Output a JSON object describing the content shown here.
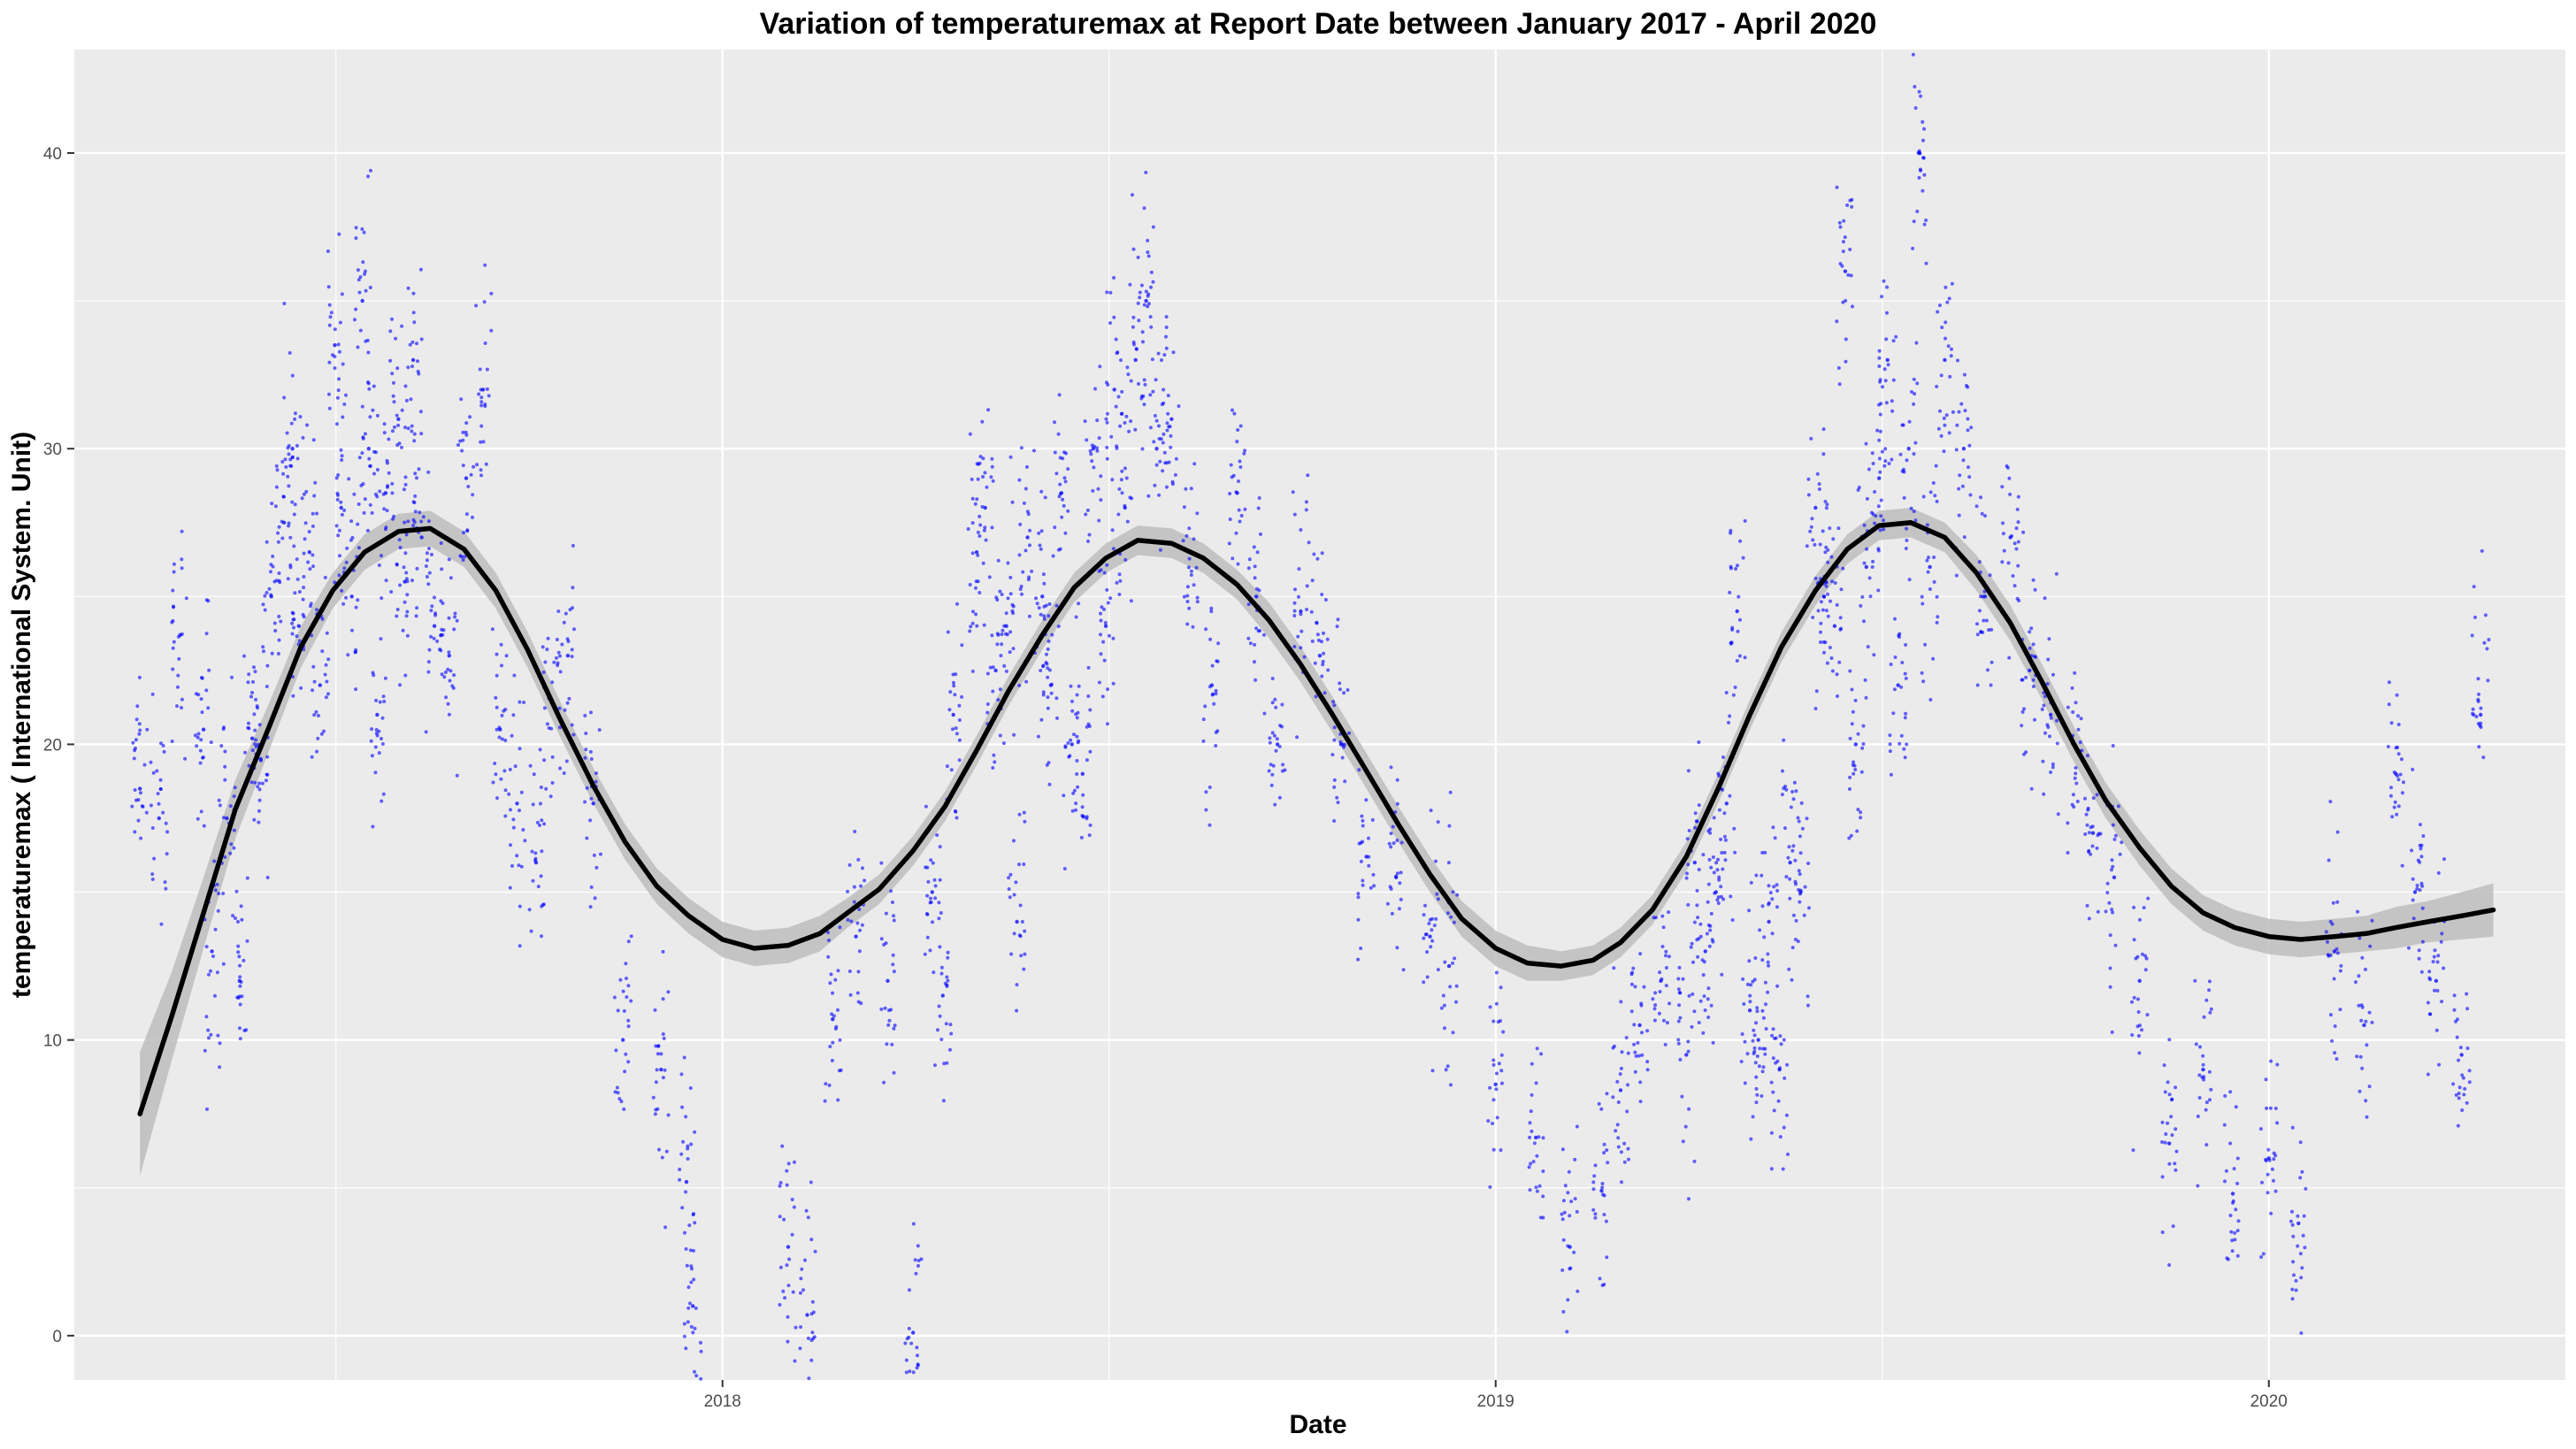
{
  "chart_data": {
    "type": "scatter",
    "title": "Variation of  temperaturemax  at Report Date between January 2017 - April 2020",
    "xlabel": "Date",
    "ylabel": "temperaturemax ( International System. Unit)",
    "xlim": [
      "2017-03-01",
      "2020-05-20"
    ],
    "ylim": [
      -1.5,
      43.5
    ],
    "x_ticks": [
      {
        "date": "2018-01-01",
        "label": "2018"
      },
      {
        "date": "2019-01-01",
        "label": "2019"
      },
      {
        "date": "2020-01-01",
        "label": "2020"
      }
    ],
    "y_ticks": [
      0,
      10,
      20,
      30,
      40
    ],
    "grid": true,
    "legend": "none",
    "colors": {
      "points": "#0000ff",
      "smooth_line": "#000000",
      "confidence_band": "#bdbdbd",
      "panel_background": "#ebebeb",
      "grid": "#ffffff"
    },
    "series": [
      {
        "type": "smooth",
        "x": [
          "2017-04-01",
          "2017-04-16",
          "2017-05-01",
          "2017-05-16",
          "2017-06-01",
          "2017-06-16",
          "2017-07-01",
          "2017-07-16",
          "2017-08-01",
          "2017-08-16",
          "2017-09-01",
          "2017-09-16",
          "2017-10-01",
          "2017-10-16",
          "2017-11-01",
          "2017-11-16",
          "2017-12-01",
          "2017-12-16",
          "2018-01-01",
          "2018-01-16",
          "2018-02-01",
          "2018-02-16",
          "2018-03-01",
          "2018-03-16",
          "2018-04-01",
          "2018-04-16",
          "2018-05-01",
          "2018-05-16",
          "2018-06-01",
          "2018-06-16",
          "2018-07-01",
          "2018-07-16",
          "2018-08-01",
          "2018-08-16",
          "2018-09-01",
          "2018-09-16",
          "2018-10-01",
          "2018-10-16",
          "2018-11-01",
          "2018-11-16",
          "2018-12-01",
          "2018-12-16",
          "2019-01-01",
          "2019-01-16",
          "2019-02-01",
          "2019-02-16",
          "2019-03-01",
          "2019-03-16",
          "2019-04-01",
          "2019-04-16",
          "2019-05-01",
          "2019-05-16",
          "2019-06-01",
          "2019-06-16",
          "2019-07-01",
          "2019-07-16",
          "2019-08-01",
          "2019-08-16",
          "2019-09-01",
          "2019-09-16",
          "2019-10-01",
          "2019-10-16",
          "2019-11-01",
          "2019-11-16",
          "2019-12-01",
          "2019-12-16",
          "2020-01-01",
          "2020-01-16",
          "2020-02-01",
          "2020-02-16",
          "2020-03-01",
          "2020-03-16",
          "2020-04-01",
          "2020-04-16"
        ],
        "y": [
          7.5,
          10.8,
          14.3,
          17.8,
          20.6,
          23.3,
          25.2,
          26.5,
          27.2,
          27.3,
          26.6,
          25.2,
          23.2,
          20.9,
          18.6,
          16.7,
          15.2,
          14.2,
          13.4,
          13.1,
          13.2,
          13.6,
          14.3,
          15.1,
          16.4,
          17.9,
          19.8,
          21.8,
          23.7,
          25.3,
          26.3,
          26.9,
          26.8,
          26.3,
          25.4,
          24.2,
          22.7,
          21.0,
          19.1,
          17.3,
          15.6,
          14.1,
          13.1,
          12.6,
          12.5,
          12.7,
          13.3,
          14.4,
          16.2,
          18.5,
          21.0,
          23.3,
          25.2,
          26.6,
          27.4,
          27.5,
          27.0,
          25.8,
          24.1,
          22.1,
          20.0,
          18.1,
          16.5,
          15.2,
          14.3,
          13.8,
          13.5,
          13.4,
          13.5,
          13.6,
          13.8,
          14.0,
          14.2,
          14.4
        ],
        "ci_halfwidth": [
          2.1,
          1.5,
          1.2,
          1.0,
          0.8,
          0.7,
          0.6,
          0.6,
          0.6,
          0.6,
          0.6,
          0.6,
          0.6,
          0.6,
          0.6,
          0.6,
          0.6,
          0.6,
          0.6,
          0.6,
          0.6,
          0.6,
          0.5,
          0.5,
          0.5,
          0.5,
          0.5,
          0.5,
          0.5,
          0.5,
          0.5,
          0.5,
          0.5,
          0.5,
          0.5,
          0.6,
          0.6,
          0.6,
          0.6,
          0.6,
          0.6,
          0.6,
          0.6,
          0.6,
          0.5,
          0.5,
          0.5,
          0.5,
          0.5,
          0.5,
          0.5,
          0.5,
          0.5,
          0.5,
          0.5,
          0.5,
          0.5,
          0.6,
          0.6,
          0.6,
          0.6,
          0.6,
          0.6,
          0.6,
          0.6,
          0.6,
          0.6,
          0.6,
          0.6,
          0.6,
          0.7,
          0.7,
          0.8,
          0.9
        ]
      },
      {
        "type": "points",
        "x": [
          "2017-04-01",
          "2017-04-10",
          "2017-04-20",
          "2017-05-01",
          "2017-05-05",
          "2017-05-12",
          "2017-05-18",
          "2017-05-24",
          "2017-05-28",
          "2017-06-02",
          "2017-06-08",
          "2017-06-12",
          "2017-06-15",
          "2017-06-20",
          "2017-06-25",
          "2017-07-02",
          "2017-07-05",
          "2017-07-10",
          "2017-07-15",
          "2017-07-18",
          "2017-07-22",
          "2017-07-26",
          "2017-08-01",
          "2017-08-04",
          "2017-08-08",
          "2017-08-12",
          "2017-08-18",
          "2017-08-25",
          "2017-09-02",
          "2017-09-10",
          "2017-09-18",
          "2017-09-26",
          "2017-10-05",
          "2017-10-12",
          "2017-10-20",
          "2017-11-01",
          "2017-11-15",
          "2017-12-03",
          "2017-12-15",
          "2017-12-18",
          "2018-02-01",
          "2018-02-10",
          "2018-02-22",
          "2018-03-05",
          "2018-03-20",
          "2018-04-01",
          "2018-04-10",
          "2018-04-15",
          "2018-04-20",
          "2018-05-01",
          "2018-05-05",
          "2018-05-10",
          "2018-05-15",
          "2018-05-20",
          "2018-05-25",
          "2018-06-01",
          "2018-06-05",
          "2018-06-10",
          "2018-06-15",
          "2018-06-20",
          "2018-06-25",
          "2018-07-01",
          "2018-07-05",
          "2018-07-10",
          "2018-07-15",
          "2018-07-20",
          "2018-07-25",
          "2018-08-01",
          "2018-08-10",
          "2018-08-20",
          "2018-09-01",
          "2018-09-10",
          "2018-09-20",
          "2018-10-01",
          "2018-10-10",
          "2018-10-20",
          "2018-11-01",
          "2018-11-15",
          "2018-12-01",
          "2018-12-10",
          "2019-01-01",
          "2019-01-20",
          "2019-02-05",
          "2019-02-20",
          "2019-03-01",
          "2019-03-10",
          "2019-03-20",
          "2019-04-01",
          "2019-04-05",
          "2019-04-10",
          "2019-04-15",
          "2019-04-20",
          "2019-04-25",
          "2019-05-01",
          "2019-05-05",
          "2019-05-10",
          "2019-05-15",
          "2019-05-20",
          "2019-05-25",
          "2019-06-01",
          "2019-06-05",
          "2019-06-10",
          "2019-06-15",
          "2019-06-20",
          "2019-06-25",
          "2019-07-01",
          "2019-07-05",
          "2019-07-10",
          "2019-07-15",
          "2019-07-20",
          "2019-07-25",
          "2019-08-01",
          "2019-08-10",
          "2019-08-20",
          "2019-09-01",
          "2019-09-10",
          "2019-09-20",
          "2019-10-01",
          "2019-10-10",
          "2019-10-20",
          "2019-11-01",
          "2019-11-15",
          "2019-12-01",
          "2019-12-15",
          "2020-01-01",
          "2020-01-15",
          "2020-02-01",
          "2020-02-15",
          "2020-03-01",
          "2020-03-10",
          "2020-03-20",
          "2020-04-01",
          "2020-04-10"
        ],
        "y": [
          18.5,
          17.5,
          23.7,
          20.5,
          13.0,
          17.5,
          12.0,
          20.2,
          19.5,
          25.0,
          27.5,
          30.0,
          24.0,
          26.5,
          22.0,
          33.5,
          28.0,
          25.0,
          35.0,
          30.0,
          21.0,
          28.5,
          31.0,
          25.5,
          33.0,
          27.0,
          24.0,
          23.0,
          29.0,
          32.0,
          20.5,
          18.0,
          16.0,
          21.5,
          23.0,
          18.0,
          10.0,
          9.0,
          5.2,
          1.0,
          3.0,
          0.7,
          10.7,
          13.5,
          12.0,
          0.1,
          15.0,
          11.5,
          21.0,
          26.5,
          28.0,
          22.5,
          24.0,
          14.0,
          27.0,
          25.0,
          22.0,
          28.5,
          20.0,
          19.0,
          30.0,
          24.0,
          32.0,
          28.0,
          33.0,
          35.0,
          30.0,
          31.0,
          26.5,
          22.0,
          28.5,
          25.0,
          20.0,
          24.5,
          23.0,
          20.0,
          16.2,
          15.5,
          13.5,
          12.5,
          8.5,
          6.7,
          3.0,
          4.9,
          8.3,
          10.5,
          12.0,
          9.5,
          16.0,
          13.0,
          15.0,
          18.0,
          24.5,
          11.0,
          10.0,
          14.0,
          9.0,
          16.0,
          15.0,
          28.0,
          25.0,
          24.0,
          36.0,
          20.0,
          26.0,
          29.0,
          33.0,
          22.0,
          30.0,
          40.0,
          26.0,
          33.0,
          30.0,
          25.0,
          27.0,
          22.5,
          21.0,
          20.0,
          17.0,
          15.5,
          12.0,
          6.5,
          9.0,
          4.8,
          6.0,
          3.8,
          13.0,
          10.5,
          19.0,
          15.0,
          12.0,
          9.5,
          21.0
        ]
      }
    ]
  }
}
